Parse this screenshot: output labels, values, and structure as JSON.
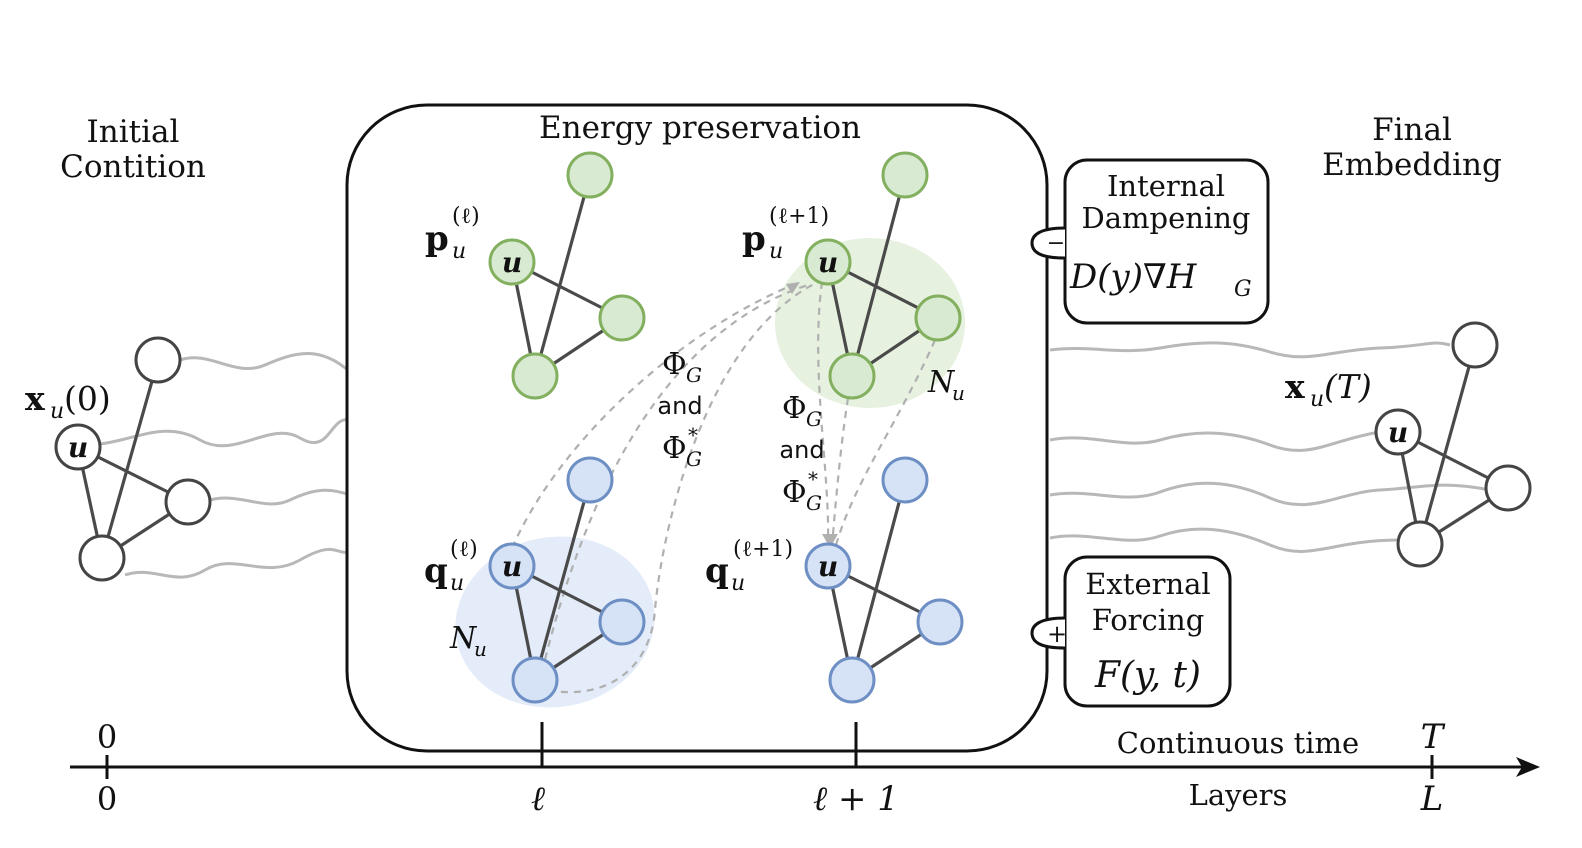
{
  "labels": {
    "initial_line1": "Initial",
    "initial_line2": "Contition",
    "final_line1": "Final",
    "final_line2": "Embedding",
    "energy": "Energy preservation",
    "dampening_line1": "Internal",
    "dampening_line2": "Dampening",
    "dampening_formula": "D(y)∇H",
    "dampening_sign": "−",
    "forcing_line1": "External",
    "forcing_line2": "Forcing",
    "forcing_formula": "F(y, t)",
    "forcing_sign": "+",
    "and": "and",
    "neighborhood": "N",
    "neighborhood_sub": "u",
    "node_u": "u",
    "x_initial": "x",
    "x_initial_arg": "(0)",
    "x_final": "x",
    "x_final_arg": "(T)",
    "p": "p",
    "q": "q",
    "sup_l": "(ℓ)",
    "sup_l1": "(ℓ+1)",
    "phi": "Φ",
    "phi_sub": "G",
    "phi_star": "*",
    "continuous_time": "Continuous time",
    "layers": "Layers"
  },
  "axis": {
    "time_ticks": [
      "0",
      "T"
    ],
    "layer_ticks": [
      "0",
      "ℓ",
      "ℓ + 1",
      "L"
    ]
  },
  "colors": {
    "green_fill": "#d9ead3",
    "green_stroke": "#83b05f",
    "blue_fill": "#d6e2f6",
    "blue_stroke": "#6d8fc4",
    "green_halo": "#e6f1e0",
    "blue_halo": "#e4ecfa"
  }
}
